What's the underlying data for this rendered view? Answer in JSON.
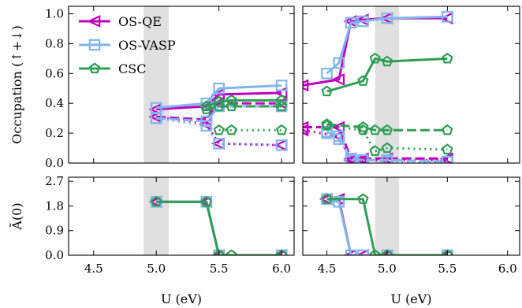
{
  "chart_data": {
    "type": "line",
    "colors": {
      "OS-QE": "#c000c0",
      "OS-VASP": "#80b6ec",
      "CSC": "#2f9e55",
      "shade": "#e0e0e0"
    },
    "legend": {
      "placement": "top-left",
      "entries": [
        {
          "name": "OS-QE",
          "marker": "triangle-left"
        },
        {
          "name": "OS-VASP",
          "marker": "square"
        },
        {
          "name": "CSC",
          "marker": "pentagon"
        }
      ]
    },
    "xlabel": "U (eV)",
    "xticks": [
      "4.5",
      "5.0",
      "5.5",
      "6.0"
    ],
    "xlim": [
      4.3,
      6.1
    ],
    "top_ylabel": "Occupation (↑+↓)",
    "top_ylim": [
      0,
      1.05
    ],
    "top_yticks": [
      "0.0",
      "0.2",
      "0.4",
      "0.6",
      "0.8",
      "1.0"
    ],
    "bottom_ylabel": "Ā(0)",
    "bottom_ylim": [
      0,
      2.85
    ],
    "bottom_yticks": [
      "0.0",
      "0.9",
      "1.8",
      "2.7"
    ],
    "panels": [
      {
        "shade": [
          4.9,
          5.1
        ],
        "occupation": [
          {
            "name": "OS-QE",
            "style": "solid",
            "x": [
              5.0,
              5.4,
              5.5,
              6.0
            ],
            "y": [
              0.36,
              0.38,
              0.46,
              0.47
            ]
          },
          {
            "name": "OS-QE",
            "style": "dashed",
            "x": [
              5.0,
              5.4,
              5.5,
              6.0
            ],
            "y": [
              0.31,
              0.29,
              0.4,
              0.4
            ]
          },
          {
            "name": "OS-QE",
            "style": "dotted",
            "x": [
              5.0,
              5.4,
              5.5,
              6.0
            ],
            "y": [
              0.31,
              0.26,
              0.13,
              0.12
            ]
          },
          {
            "name": "OS-VASP",
            "style": "solid",
            "x": [
              5.0,
              5.4,
              5.5,
              6.0
            ],
            "y": [
              0.37,
              0.4,
              0.5,
              0.52
            ]
          },
          {
            "name": "OS-VASP",
            "style": "dashed",
            "x": [
              5.0,
              5.4,
              5.5,
              6.0
            ],
            "y": [
              0.3,
              0.28,
              0.38,
              0.38
            ]
          },
          {
            "name": "OS-VASP",
            "style": "dotted",
            "x": [
              5.0,
              5.4,
              5.5,
              6.0
            ],
            "y": [
              0.3,
              0.25,
              0.13,
              0.12
            ]
          },
          {
            "name": "CSC",
            "style": "solid",
            "x": [
              5.4,
              5.5,
              5.6,
              6.0
            ],
            "y": [
              0.38,
              0.41,
              0.42,
              0.42
            ]
          },
          {
            "name": "CSC",
            "style": "dashed",
            "x": [
              5.4,
              5.5,
              5.6,
              6.0
            ],
            "y": [
              0.36,
              0.38,
              0.38,
              0.38
            ]
          },
          {
            "name": "CSC",
            "style": "dotted",
            "x": [
              5.5,
              5.6,
              6.0
            ],
            "y": [
              0.22,
              0.22,
              0.22
            ]
          }
        ],
        "spectral": [
          {
            "name": "OS-QE",
            "x": [
              5.0,
              5.4,
              5.5,
              6.0
            ],
            "y": [
              1.95,
              1.95,
              0.0,
              0.0
            ]
          },
          {
            "name": "OS-VASP",
            "x": [
              5.0,
              5.4,
              5.5,
              6.0
            ],
            "y": [
              1.95,
              1.95,
              0.0,
              0.0
            ]
          },
          {
            "name": "CSC",
            "x": [
              5.0,
              5.4,
              5.5,
              5.6,
              6.0
            ],
            "y": [
              1.95,
              1.95,
              0.0,
              0.0,
              0.0
            ]
          }
        ]
      },
      {
        "shade": [
          4.9,
          5.1
        ],
        "occupation": [
          {
            "name": "OS-QE",
            "style": "solid",
            "x": [
              4.3,
              4.6,
              4.7,
              4.8,
              5.0,
              5.5
            ],
            "y": [
              0.52,
              0.56,
              0.95,
              0.96,
              0.97,
              0.97
            ]
          },
          {
            "name": "OS-QE",
            "style": "dashed",
            "x": [
              4.3,
              4.6,
              4.7,
              4.8,
              5.0,
              5.5
            ],
            "y": [
              0.24,
              0.24,
              0.03,
              0.03,
              0.03,
              0.03
            ]
          },
          {
            "name": "OS-QE",
            "style": "dotted",
            "x": [
              4.3,
              4.6,
              4.7,
              4.8,
              5.0,
              5.5
            ],
            "y": [
              0.22,
              0.18,
              0.02,
              0.02,
              0.02,
              0.02
            ]
          },
          {
            "name": "OS-VASP",
            "style": "solid",
            "x": [
              4.5,
              4.6,
              4.7,
              4.8,
              5.0,
              5.5
            ],
            "y": [
              0.6,
              0.67,
              0.94,
              0.95,
              0.97,
              0.98
            ]
          },
          {
            "name": "OS-VASP",
            "style": "dashed",
            "x": [
              4.5,
              4.6,
              4.7,
              4.8,
              5.0,
              5.5
            ],
            "y": [
              0.21,
              0.18,
              0.03,
              0.02,
              0.02,
              0.01
            ]
          },
          {
            "name": "OS-VASP",
            "style": "dotted",
            "x": [
              4.5,
              4.6,
              4.7,
              4.8,
              5.0,
              5.5
            ],
            "y": [
              0.2,
              0.16,
              0.02,
              0.02,
              0.01,
              0.01
            ]
          },
          {
            "name": "CSC",
            "style": "solid",
            "x": [
              4.5,
              4.8,
              4.9,
              5.0,
              5.5
            ],
            "y": [
              0.48,
              0.55,
              0.7,
              0.68,
              0.7
            ]
          },
          {
            "name": "CSC",
            "style": "dashed",
            "x": [
              4.5,
              4.8,
              4.9,
              5.0,
              5.5
            ],
            "y": [
              0.26,
              0.24,
              0.22,
              0.22,
              0.22
            ]
          },
          {
            "name": "CSC",
            "style": "dotted",
            "x": [
              4.5,
              4.8,
              4.9,
              5.0,
              5.5
            ],
            "y": [
              0.25,
              0.22,
              0.08,
              0.1,
              0.09
            ]
          }
        ],
        "spectral": [
          {
            "name": "OS-QE",
            "x": [
              4.5,
              4.6,
              4.7,
              4.8,
              5.0,
              5.5
            ],
            "y": [
              2.05,
              2.05,
              0.0,
              0.0,
              0.0,
              0.0
            ]
          },
          {
            "name": "OS-VASP",
            "x": [
              4.5,
              4.6,
              4.7,
              4.8,
              5.0,
              5.5
            ],
            "y": [
              2.05,
              1.95,
              0.0,
              0.0,
              0.0,
              0.0
            ]
          },
          {
            "name": "CSC",
            "x": [
              4.5,
              4.8,
              4.9,
              5.0,
              5.5
            ],
            "y": [
              2.05,
              2.05,
              0.0,
              0.0,
              0.0
            ]
          }
        ]
      }
    ]
  }
}
